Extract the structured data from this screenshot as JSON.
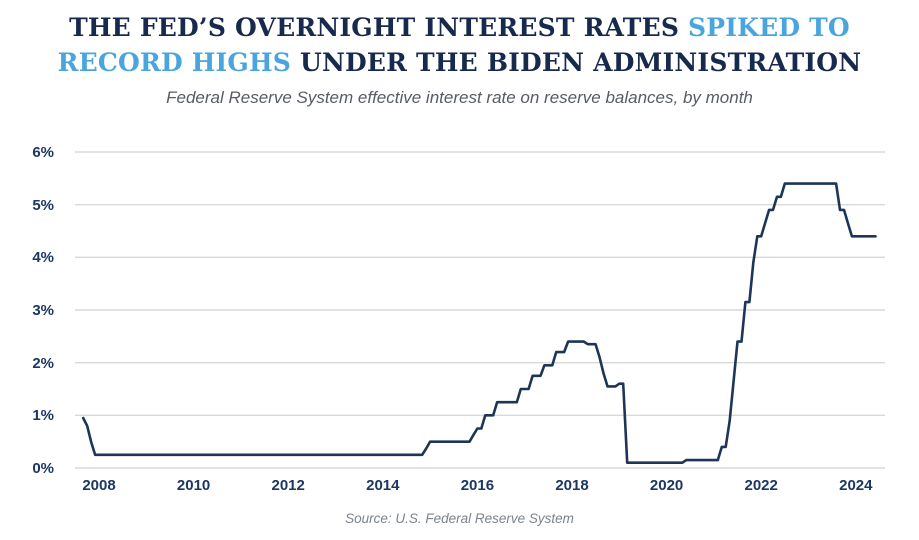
{
  "title": {
    "line1_dark": "THE FED’S OVERNIGHT INTEREST RATES ",
    "line1_blue": "SPIKED TO",
    "line2_blue": "RECORD HIGHS",
    "line2_dark": " UNDER THE BIDEN ADMINISTRATION"
  },
  "subtitle": "Federal Reserve System effective interest rate on reserve balances, by month",
  "source": "Source: U.S. Federal Reserve System",
  "colors": {
    "title_navy": "#17294d",
    "highlight_blue": "#4aa4de",
    "axis_label_navy": "#1b3764",
    "grid_gray": "#d9d9d9"
  },
  "chart_data": {
    "type": "line",
    "frequency": "monthly",
    "start_month": "2008-09",
    "end_month": "2025-06",
    "title": "Federal Reserve effective interest rate on reserve balances",
    "xlabel": "",
    "ylabel": "",
    "ylim": [
      0,
      6
    ],
    "grid": true,
    "legend": "none",
    "line_color": "#1d3557",
    "y_ticks": [
      "0%",
      "1%",
      "2%",
      "3%",
      "4%",
      "5%",
      "6%"
    ],
    "x_ticks": [
      2008,
      2010,
      2012,
      2014,
      2016,
      2018,
      2020,
      2022,
      2024
    ],
    "values": [
      0.95,
      0.8,
      0.5,
      0.25,
      0.25,
      0.25,
      0.25,
      0.25,
      0.25,
      0.25,
      0.25,
      0.25,
      0.25,
      0.25,
      0.25,
      0.25,
      0.25,
      0.25,
      0.25,
      0.25,
      0.25,
      0.25,
      0.25,
      0.25,
      0.25,
      0.25,
      0.25,
      0.25,
      0.25,
      0.25,
      0.25,
      0.25,
      0.25,
      0.25,
      0.25,
      0.25,
      0.25,
      0.25,
      0.25,
      0.25,
      0.25,
      0.25,
      0.25,
      0.25,
      0.25,
      0.25,
      0.25,
      0.25,
      0.25,
      0.25,
      0.25,
      0.25,
      0.25,
      0.25,
      0.25,
      0.25,
      0.25,
      0.25,
      0.25,
      0.25,
      0.25,
      0.25,
      0.25,
      0.25,
      0.25,
      0.25,
      0.25,
      0.25,
      0.25,
      0.25,
      0.25,
      0.25,
      0.25,
      0.25,
      0.25,
      0.25,
      0.25,
      0.25,
      0.25,
      0.25,
      0.25,
      0.25,
      0.25,
      0.25,
      0.25,
      0.25,
      0.25,
      0.37,
      0.5,
      0.5,
      0.5,
      0.5,
      0.5,
      0.5,
      0.5,
      0.5,
      0.5,
      0.5,
      0.5,
      0.63,
      0.75,
      0.75,
      1.0,
      1.0,
      1.0,
      1.25,
      1.25,
      1.25,
      1.25,
      1.25,
      1.25,
      1.5,
      1.5,
      1.5,
      1.75,
      1.75,
      1.75,
      1.95,
      1.95,
      1.95,
      2.2,
      2.2,
      2.2,
      2.4,
      2.4,
      2.4,
      2.4,
      2.4,
      2.35,
      2.35,
      2.35,
      2.1,
      1.8,
      1.55,
      1.55,
      1.55,
      1.6,
      1.6,
      0.1,
      0.1,
      0.1,
      0.1,
      0.1,
      0.1,
      0.1,
      0.1,
      0.1,
      0.1,
      0.1,
      0.1,
      0.1,
      0.1,
      0.1,
      0.15,
      0.15,
      0.15,
      0.15,
      0.15,
      0.15,
      0.15,
      0.15,
      0.15,
      0.4,
      0.4,
      0.9,
      1.65,
      2.4,
      2.4,
      3.15,
      3.15,
      3.9,
      4.4,
      4.4,
      4.65,
      4.9,
      4.9,
      5.15,
      5.15,
      5.4,
      5.4,
      5.4,
      5.4,
      5.4,
      5.4,
      5.4,
      5.4,
      5.4,
      5.4,
      5.4,
      5.4,
      5.4,
      5.4,
      4.9,
      4.9,
      4.65,
      4.4,
      4.4,
      4.4,
      4.4,
      4.4,
      4.4,
      4.4
    ]
  }
}
